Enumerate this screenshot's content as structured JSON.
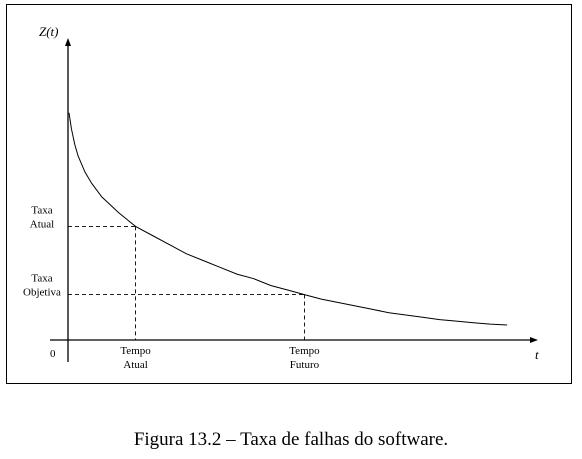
{
  "caption": "Figura 13.2 – Taxa de falhas do software.",
  "chart_data": {
    "type": "line",
    "title": "",
    "ylabel": "Z(t)",
    "xlabel": "t",
    "origin_label": "0",
    "series": [
      {
        "x": [
          0.03,
          0.1,
          0.2,
          0.3,
          0.5,
          0.7,
          1.0,
          1.5,
          2.0,
          2.5,
          3.0,
          3.5,
          4.0,
          4.5,
          5.0,
          5.5,
          6.0,
          6.5,
          7.0,
          7.5,
          8.0,
          8.5,
          9.0,
          9.5,
          10.0,
          10.5,
          11.0,
          11.5,
          12.0,
          12.5,
          13.0
        ],
        "y": [
          1.0,
          0.93,
          0.86,
          0.81,
          0.74,
          0.69,
          0.63,
          0.56,
          0.5,
          0.46,
          0.42,
          0.38,
          0.35,
          0.32,
          0.29,
          0.27,
          0.24,
          0.22,
          0.2,
          0.18,
          0.165,
          0.15,
          0.135,
          0.12,
          0.11,
          0.1,
          0.09,
          0.083,
          0.076,
          0.07,
          0.066
        ]
      }
    ],
    "xlim": [
      0,
      13.5
    ],
    "ylim": [
      0,
      1.25
    ],
    "markers": [
      {
        "x_label": [
          "Tempo",
          "Atual"
        ],
        "y_label": [
          "Taxa",
          "Atual"
        ],
        "x": 2.0,
        "y": 0.5
      },
      {
        "x_label": [
          "Tempo",
          "Futuro"
        ],
        "y_label": [
          "Taxa",
          "Objetiva"
        ],
        "x": 7.0,
        "y": 0.2
      }
    ],
    "grid": false,
    "legend": "none"
  }
}
